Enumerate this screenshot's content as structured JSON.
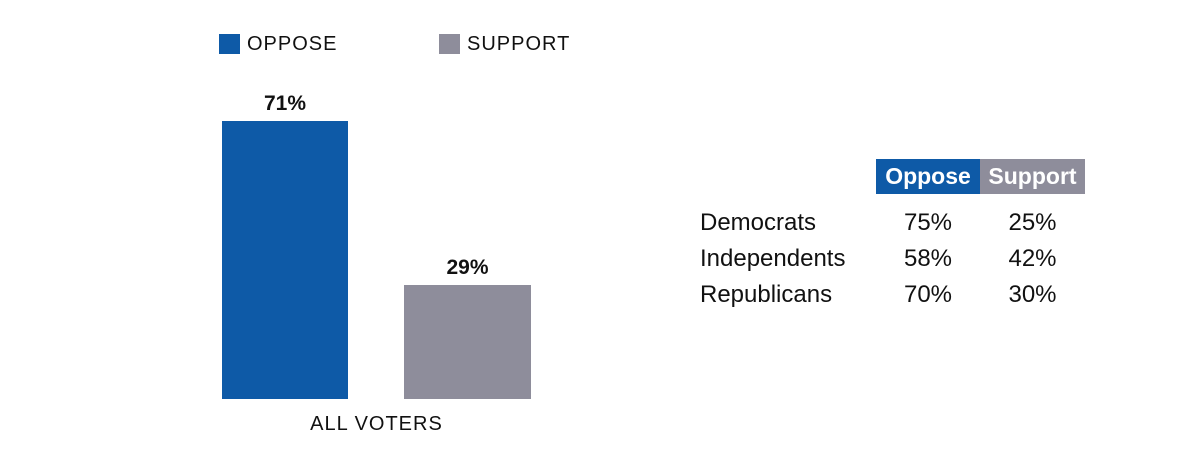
{
  "colors": {
    "oppose": "#0E5AA7",
    "support": "#8E8D9B",
    "text": "#111111",
    "header_text": "#FFFFFF",
    "background": "#FFFFFF"
  },
  "legend": {
    "items": [
      {
        "label": "OPPOSE",
        "color": "#0E5AA7"
      },
      {
        "label": "SUPPORT",
        "color": "#8E8D9B"
      }
    ]
  },
  "chart_data": {
    "type": "bar",
    "categories": [
      "ALL VOTERS"
    ],
    "series": [
      {
        "name": "OPPOSE",
        "color": "#0E5AA7",
        "values": [
          71
        ]
      },
      {
        "name": "SUPPORT",
        "color": "#8E8D9B",
        "values": [
          29
        ]
      }
    ],
    "value_labels": [
      "71%",
      "29%"
    ],
    "title": "",
    "xlabel": "",
    "ylabel": "",
    "ylim": [
      0,
      100
    ],
    "grid": false,
    "axes_visible": false,
    "legend_position": "top"
  },
  "table": {
    "headers": [
      {
        "label": "Oppose",
        "color": "#0E5AA7"
      },
      {
        "label": "Support",
        "color": "#8E8D9B"
      }
    ],
    "rows": [
      {
        "label": "Democrats",
        "oppose": "75%",
        "support": "25%"
      },
      {
        "label": "Independents",
        "oppose": "58%",
        "support": "42%"
      },
      {
        "label": "Republicans",
        "oppose": "70%",
        "support": "30%"
      }
    ]
  }
}
